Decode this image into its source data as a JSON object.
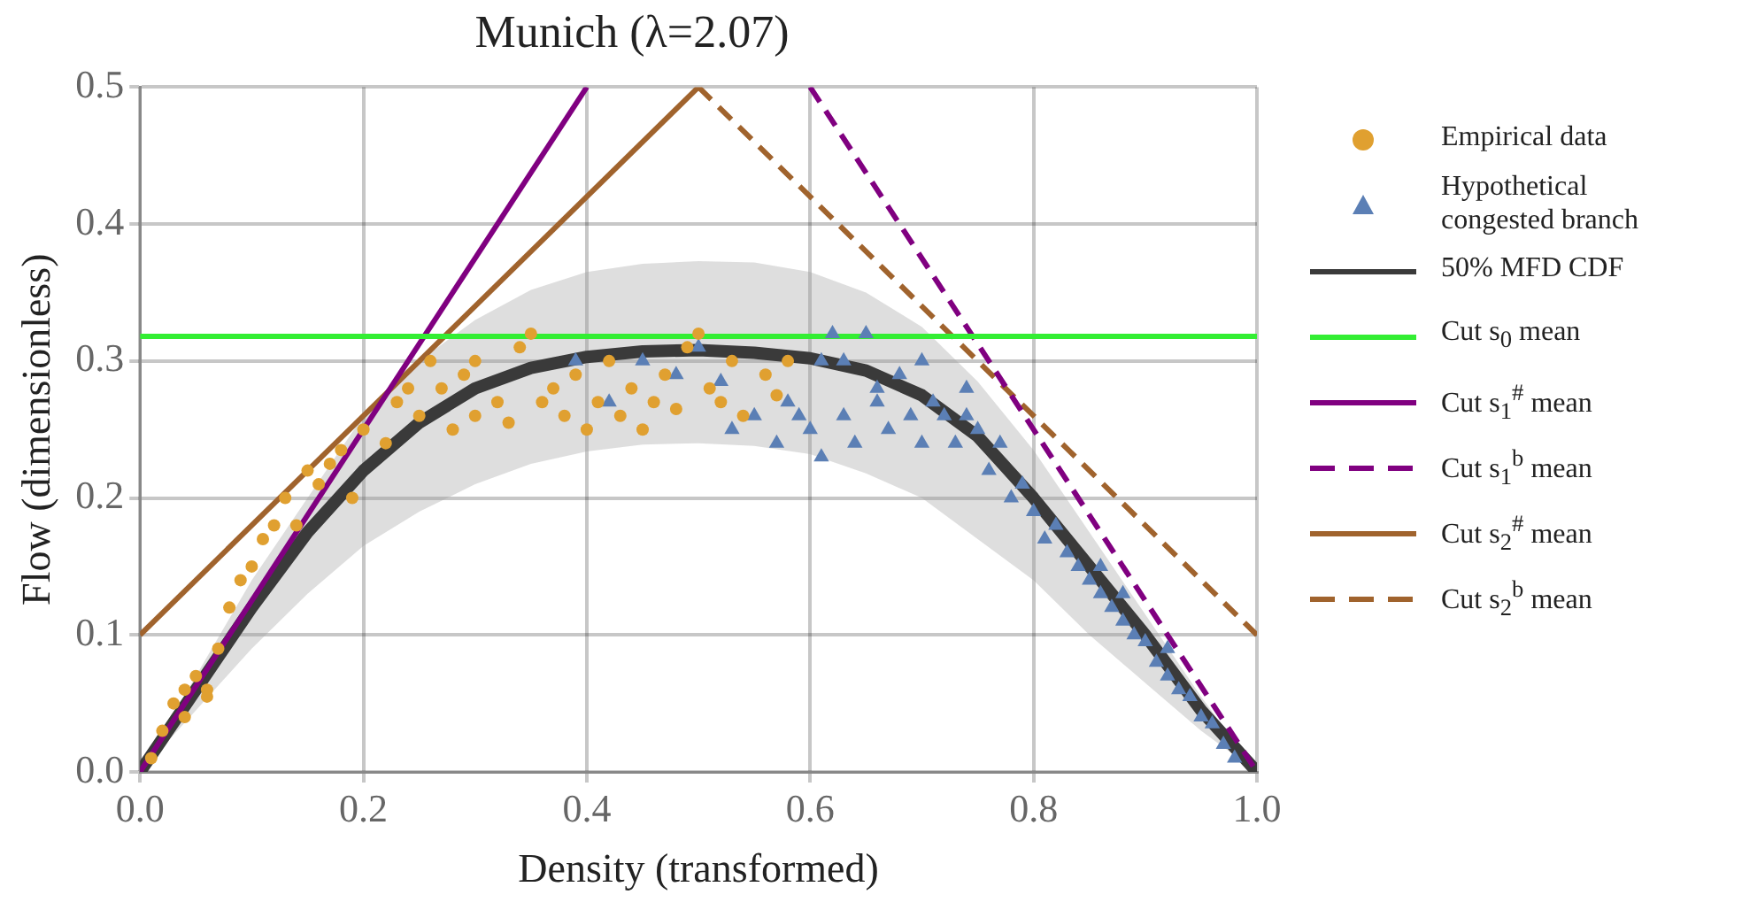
{
  "chart_data": {
    "type": "scatter",
    "title": "Munich (λ=2.07)",
    "xlabel": "Density (transformed)",
    "ylabel": "Flow (dimensionless)",
    "xlim": [
      0,
      1
    ],
    "ylim": [
      0,
      0.5
    ],
    "xticks": [
      {
        "value": 0,
        "label": "0.0"
      },
      0.2,
      0.4,
      0.6,
      0.8,
      {
        "value": 1,
        "label": "1.0"
      }
    ],
    "yticks": [
      {
        "value": 0,
        "label": "0.0"
      },
      0.1,
      0.2,
      0.3,
      0.4,
      0.5
    ],
    "grid": true,
    "legend": "right",
    "series": [
      {
        "name": "Empirical data",
        "marker": "circle",
        "color": "#e0a030",
        "x": [
          0.01,
          0.02,
          0.03,
          0.04,
          0.05,
          0.06,
          0.04,
          0.07,
          0.08,
          0.09,
          0.1,
          0.11,
          0.12,
          0.13,
          0.15,
          0.16,
          0.17,
          0.18,
          0.2,
          0.22,
          0.23,
          0.25,
          0.27,
          0.28,
          0.3,
          0.3,
          0.32,
          0.33,
          0.34,
          0.35,
          0.36,
          0.37,
          0.38,
          0.39,
          0.4,
          0.41,
          0.42,
          0.43,
          0.44,
          0.45,
          0.46,
          0.47,
          0.48,
          0.49,
          0.5,
          0.51,
          0.52,
          0.53,
          0.54,
          0.56,
          0.57,
          0.58,
          0.26,
          0.29,
          0.24,
          0.06,
          0.14,
          0.19
        ],
        "values": [
          0.01,
          0.03,
          0.05,
          0.06,
          0.07,
          0.055,
          0.04,
          0.09,
          0.12,
          0.14,
          0.15,
          0.17,
          0.18,
          0.2,
          0.22,
          0.21,
          0.225,
          0.235,
          0.25,
          0.24,
          0.27,
          0.26,
          0.28,
          0.25,
          0.26,
          0.3,
          0.27,
          0.255,
          0.31,
          0.32,
          0.27,
          0.28,
          0.26,
          0.29,
          0.25,
          0.27,
          0.3,
          0.26,
          0.28,
          0.25,
          0.27,
          0.29,
          0.265,
          0.31,
          0.32,
          0.28,
          0.27,
          0.3,
          0.26,
          0.29,
          0.275,
          0.3,
          0.3,
          0.29,
          0.28,
          0.06,
          0.18,
          0.2
        ]
      },
      {
        "name": "Hypothetical congested branch",
        "marker": "triangle",
        "color": "#5b7fb5",
        "x": [
          0.39,
          0.42,
          0.45,
          0.48,
          0.5,
          0.52,
          0.53,
          0.55,
          0.57,
          0.58,
          0.6,
          0.61,
          0.62,
          0.63,
          0.64,
          0.65,
          0.66,
          0.67,
          0.68,
          0.69,
          0.7,
          0.71,
          0.72,
          0.73,
          0.74,
          0.75,
          0.76,
          0.77,
          0.78,
          0.79,
          0.8,
          0.81,
          0.82,
          0.83,
          0.84,
          0.85,
          0.86,
          0.87,
          0.88,
          0.89,
          0.9,
          0.91,
          0.92,
          0.93,
          0.94,
          0.95,
          0.96,
          0.97,
          0.98,
          0.66,
          0.7,
          0.63,
          0.59,
          0.61,
          0.74,
          0.88,
          0.92,
          0.86
        ],
        "values": [
          0.3,
          0.27,
          0.3,
          0.29,
          0.31,
          0.285,
          0.25,
          0.26,
          0.24,
          0.27,
          0.25,
          0.3,
          0.32,
          0.26,
          0.24,
          0.32,
          0.27,
          0.25,
          0.29,
          0.26,
          0.3,
          0.27,
          0.26,
          0.24,
          0.26,
          0.25,
          0.22,
          0.24,
          0.2,
          0.21,
          0.19,
          0.17,
          0.18,
          0.16,
          0.15,
          0.14,
          0.13,
          0.12,
          0.11,
          0.1,
          0.095,
          0.08,
          0.07,
          0.06,
          0.055,
          0.04,
          0.035,
          0.02,
          0.01,
          0.28,
          0.24,
          0.3,
          0.26,
          0.23,
          0.28,
          0.13,
          0.09,
          0.15
        ]
      },
      {
        "name": "50% MFD CDF",
        "type": "line",
        "color": "#3a3a3a",
        "line_style": "solid",
        "x": [
          0,
          0.05,
          0.1,
          0.15,
          0.2,
          0.25,
          0.3,
          0.35,
          0.4,
          0.45,
          0.5,
          0.55,
          0.6,
          0.65,
          0.7,
          0.75,
          0.8,
          0.85,
          0.9,
          0.95,
          1
        ],
        "values": [
          0,
          0.06,
          0.12,
          0.175,
          0.22,
          0.255,
          0.28,
          0.295,
          0.303,
          0.307,
          0.308,
          0.306,
          0.302,
          0.293,
          0.275,
          0.245,
          0.2,
          0.15,
          0.1,
          0.045,
          0
        ],
        "upper": [
          0,
          0.07,
          0.14,
          0.2,
          0.26,
          0.3,
          0.33,
          0.352,
          0.365,
          0.371,
          0.373,
          0.372,
          0.365,
          0.35,
          0.325,
          0.285,
          0.235,
          0.175,
          0.115,
          0.055,
          0
        ],
        "lower": [
          0,
          0.045,
          0.09,
          0.13,
          0.165,
          0.19,
          0.21,
          0.225,
          0.234,
          0.239,
          0.24,
          0.238,
          0.232,
          0.218,
          0.2,
          0.17,
          0.14,
          0.1,
          0.065,
          0.03,
          0
        ]
      },
      {
        "name": "Cut s$_{0}$ mean",
        "type": "line",
        "color": "#33ee33",
        "line_style": "solid",
        "x": [
          0,
          1
        ],
        "values": [
          0.318,
          0.318
        ]
      },
      {
        "name": "Cut s$_{1}$$^{#}$ mean",
        "type": "line",
        "color": "#800080",
        "line_style": "solid",
        "x": [
          0,
          0.4
        ],
        "values": [
          0,
          0.5
        ]
      },
      {
        "name": "Cut s$_{1}$$^{b}$ mean",
        "type": "line",
        "color": "#800080",
        "line_style": "dashed",
        "x": [
          0.6,
          1
        ],
        "values": [
          0.5,
          0
        ]
      },
      {
        "name": "Cut s$_{2}$$^{#}$ mean",
        "type": "line",
        "color": "#a0632d",
        "line_style": "solid",
        "x": [
          0,
          0.5
        ],
        "values": [
          0.1,
          0.5
        ]
      },
      {
        "name": "Cut s$_{2}$$^{b}$ mean",
        "type": "line",
        "color": "#a0632d",
        "line_style": "dashed",
        "x": [
          0.5,
          1
        ],
        "values": [
          0.5,
          0.1
        ]
      }
    ]
  }
}
